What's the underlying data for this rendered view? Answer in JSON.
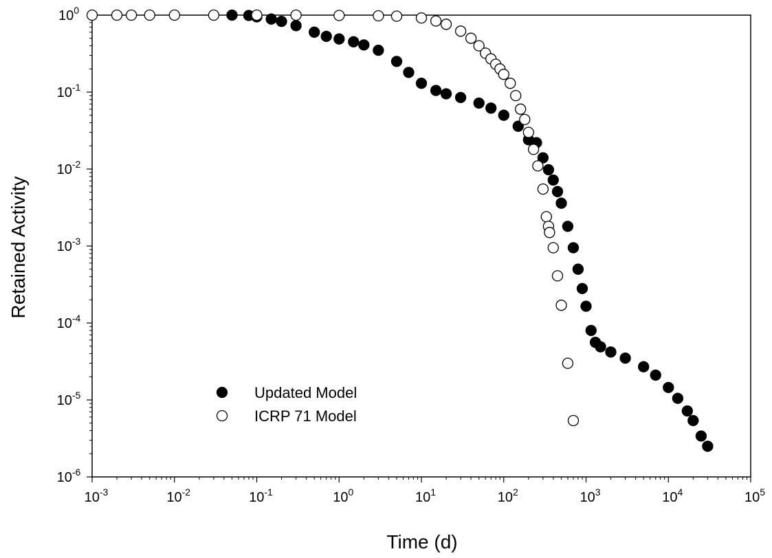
{
  "chart_data": {
    "type": "scatter",
    "title": "",
    "xlabel": "Time (d)",
    "ylabel": "Retained Activity",
    "x_scale": "log",
    "y_scale": "log",
    "xlim": [
      0.001,
      100000
    ],
    "ylim": [
      1e-06,
      1
    ],
    "grid": false,
    "legend_position": "lower-left",
    "x_ticks": [
      {
        "base": "10",
        "exp": "-3",
        "value": 0.001
      },
      {
        "base": "10",
        "exp": "-2",
        "value": 0.01
      },
      {
        "base": "10",
        "exp": "-1",
        "value": 0.1
      },
      {
        "base": "10",
        "exp": "0",
        "value": 1
      },
      {
        "base": "10",
        "exp": "1",
        "value": 10
      },
      {
        "base": "10",
        "exp": "2",
        "value": 100
      },
      {
        "base": "10",
        "exp": "3",
        "value": 1000
      },
      {
        "base": "10",
        "exp": "4",
        "value": 10000
      },
      {
        "base": "10",
        "exp": "5",
        "value": 100000
      }
    ],
    "y_ticks": [
      {
        "base": "10",
        "exp": "0",
        "value": 1
      },
      {
        "base": "10",
        "exp": "-1",
        "value": 0.1
      },
      {
        "base": "10",
        "exp": "-2",
        "value": 0.01
      },
      {
        "base": "10",
        "exp": "-3",
        "value": 0.001
      },
      {
        "base": "10",
        "exp": "-4",
        "value": 0.0001
      },
      {
        "base": "10",
        "exp": "-5",
        "value": 1e-05
      },
      {
        "base": "10",
        "exp": "-6",
        "value": 1e-06
      }
    ],
    "series": [
      {
        "name": "Updated Model",
        "marker": "filled-circle",
        "color": "#000000",
        "points": [
          [
            0.05,
            1.0
          ],
          [
            0.08,
            0.99
          ],
          [
            0.1,
            0.95
          ],
          [
            0.15,
            0.89
          ],
          [
            0.2,
            0.83
          ],
          [
            0.3,
            0.73
          ],
          [
            0.5,
            0.6
          ],
          [
            0.7,
            0.53
          ],
          [
            1.0,
            0.49
          ],
          [
            1.5,
            0.45
          ],
          [
            2.0,
            0.41
          ],
          [
            3.0,
            0.35
          ],
          [
            5.0,
            0.25
          ],
          [
            7.0,
            0.18
          ],
          [
            10.0,
            0.13
          ],
          [
            15.0,
            0.105
          ],
          [
            20.0,
            0.095
          ],
          [
            30.0,
            0.085
          ],
          [
            50.0,
            0.072
          ],
          [
            70.0,
            0.062
          ],
          [
            100.0,
            0.05
          ],
          [
            150.0,
            0.036
          ],
          [
            200.0,
            0.024
          ],
          [
            250.0,
            0.022
          ],
          [
            300.0,
            0.014
          ],
          [
            350.0,
            0.0098
          ],
          [
            400.0,
            0.0072
          ],
          [
            450.0,
            0.0051
          ],
          [
            500.0,
            0.0036
          ],
          [
            600.0,
            0.0018
          ],
          [
            700.0,
            0.00095
          ],
          [
            800.0,
            0.0005
          ],
          [
            900.0,
            0.00028
          ],
          [
            1000.0,
            0.000165
          ],
          [
            1150.0,
            8e-05
          ],
          [
            1300.0,
            5.6e-05
          ],
          [
            1500.0,
            4.9e-05
          ],
          [
            2000.0,
            4.2e-05
          ],
          [
            3000.0,
            3.5e-05
          ],
          [
            5000.0,
            2.7e-05
          ],
          [
            7000.0,
            2.1e-05
          ],
          [
            10000.0,
            1.45e-05
          ],
          [
            13000.0,
            1.05e-05
          ],
          [
            17000.0,
            7.2e-06
          ],
          [
            20000.0,
            5.4e-06
          ],
          [
            25000.0,
            3.4e-06
          ],
          [
            30000.0,
            2.5e-06
          ]
        ]
      },
      {
        "name": "ICRP 71 Model",
        "marker": "open-circle",
        "color": "#000000",
        "points": [
          [
            0.001,
            1.0
          ],
          [
            0.002,
            1.0
          ],
          [
            0.003,
            1.0
          ],
          [
            0.005,
            1.0
          ],
          [
            0.01,
            1.0
          ],
          [
            0.03,
            1.0
          ],
          [
            0.1,
            1.0
          ],
          [
            0.3,
            1.0
          ],
          [
            1.0,
            0.99
          ],
          [
            3.0,
            0.98
          ],
          [
            5.0,
            0.97
          ],
          [
            10.0,
            0.92
          ],
          [
            15.0,
            0.84
          ],
          [
            20.0,
            0.76
          ],
          [
            30.0,
            0.62
          ],
          [
            40.0,
            0.5
          ],
          [
            50.0,
            0.4
          ],
          [
            60.0,
            0.32
          ],
          [
            70.0,
            0.27
          ],
          [
            80.0,
            0.23
          ],
          [
            90.0,
            0.2
          ],
          [
            100.0,
            0.17
          ],
          [
            120.0,
            0.13
          ],
          [
            140.0,
            0.09
          ],
          [
            160.0,
            0.06
          ],
          [
            180.0,
            0.044
          ],
          [
            200.0,
            0.03
          ],
          [
            230.0,
            0.018
          ],
          [
            260.0,
            0.011
          ],
          [
            300.0,
            0.0055
          ],
          [
            330.0,
            0.0024
          ],
          [
            350.0,
            0.0018
          ],
          [
            360.0,
            0.0015
          ],
          [
            400.0,
            0.00095
          ],
          [
            450.0,
            0.00041
          ],
          [
            500.0,
            0.00017
          ],
          [
            600.0,
            3e-05
          ],
          [
            700.0,
            5.4e-06
          ]
        ]
      }
    ]
  }
}
